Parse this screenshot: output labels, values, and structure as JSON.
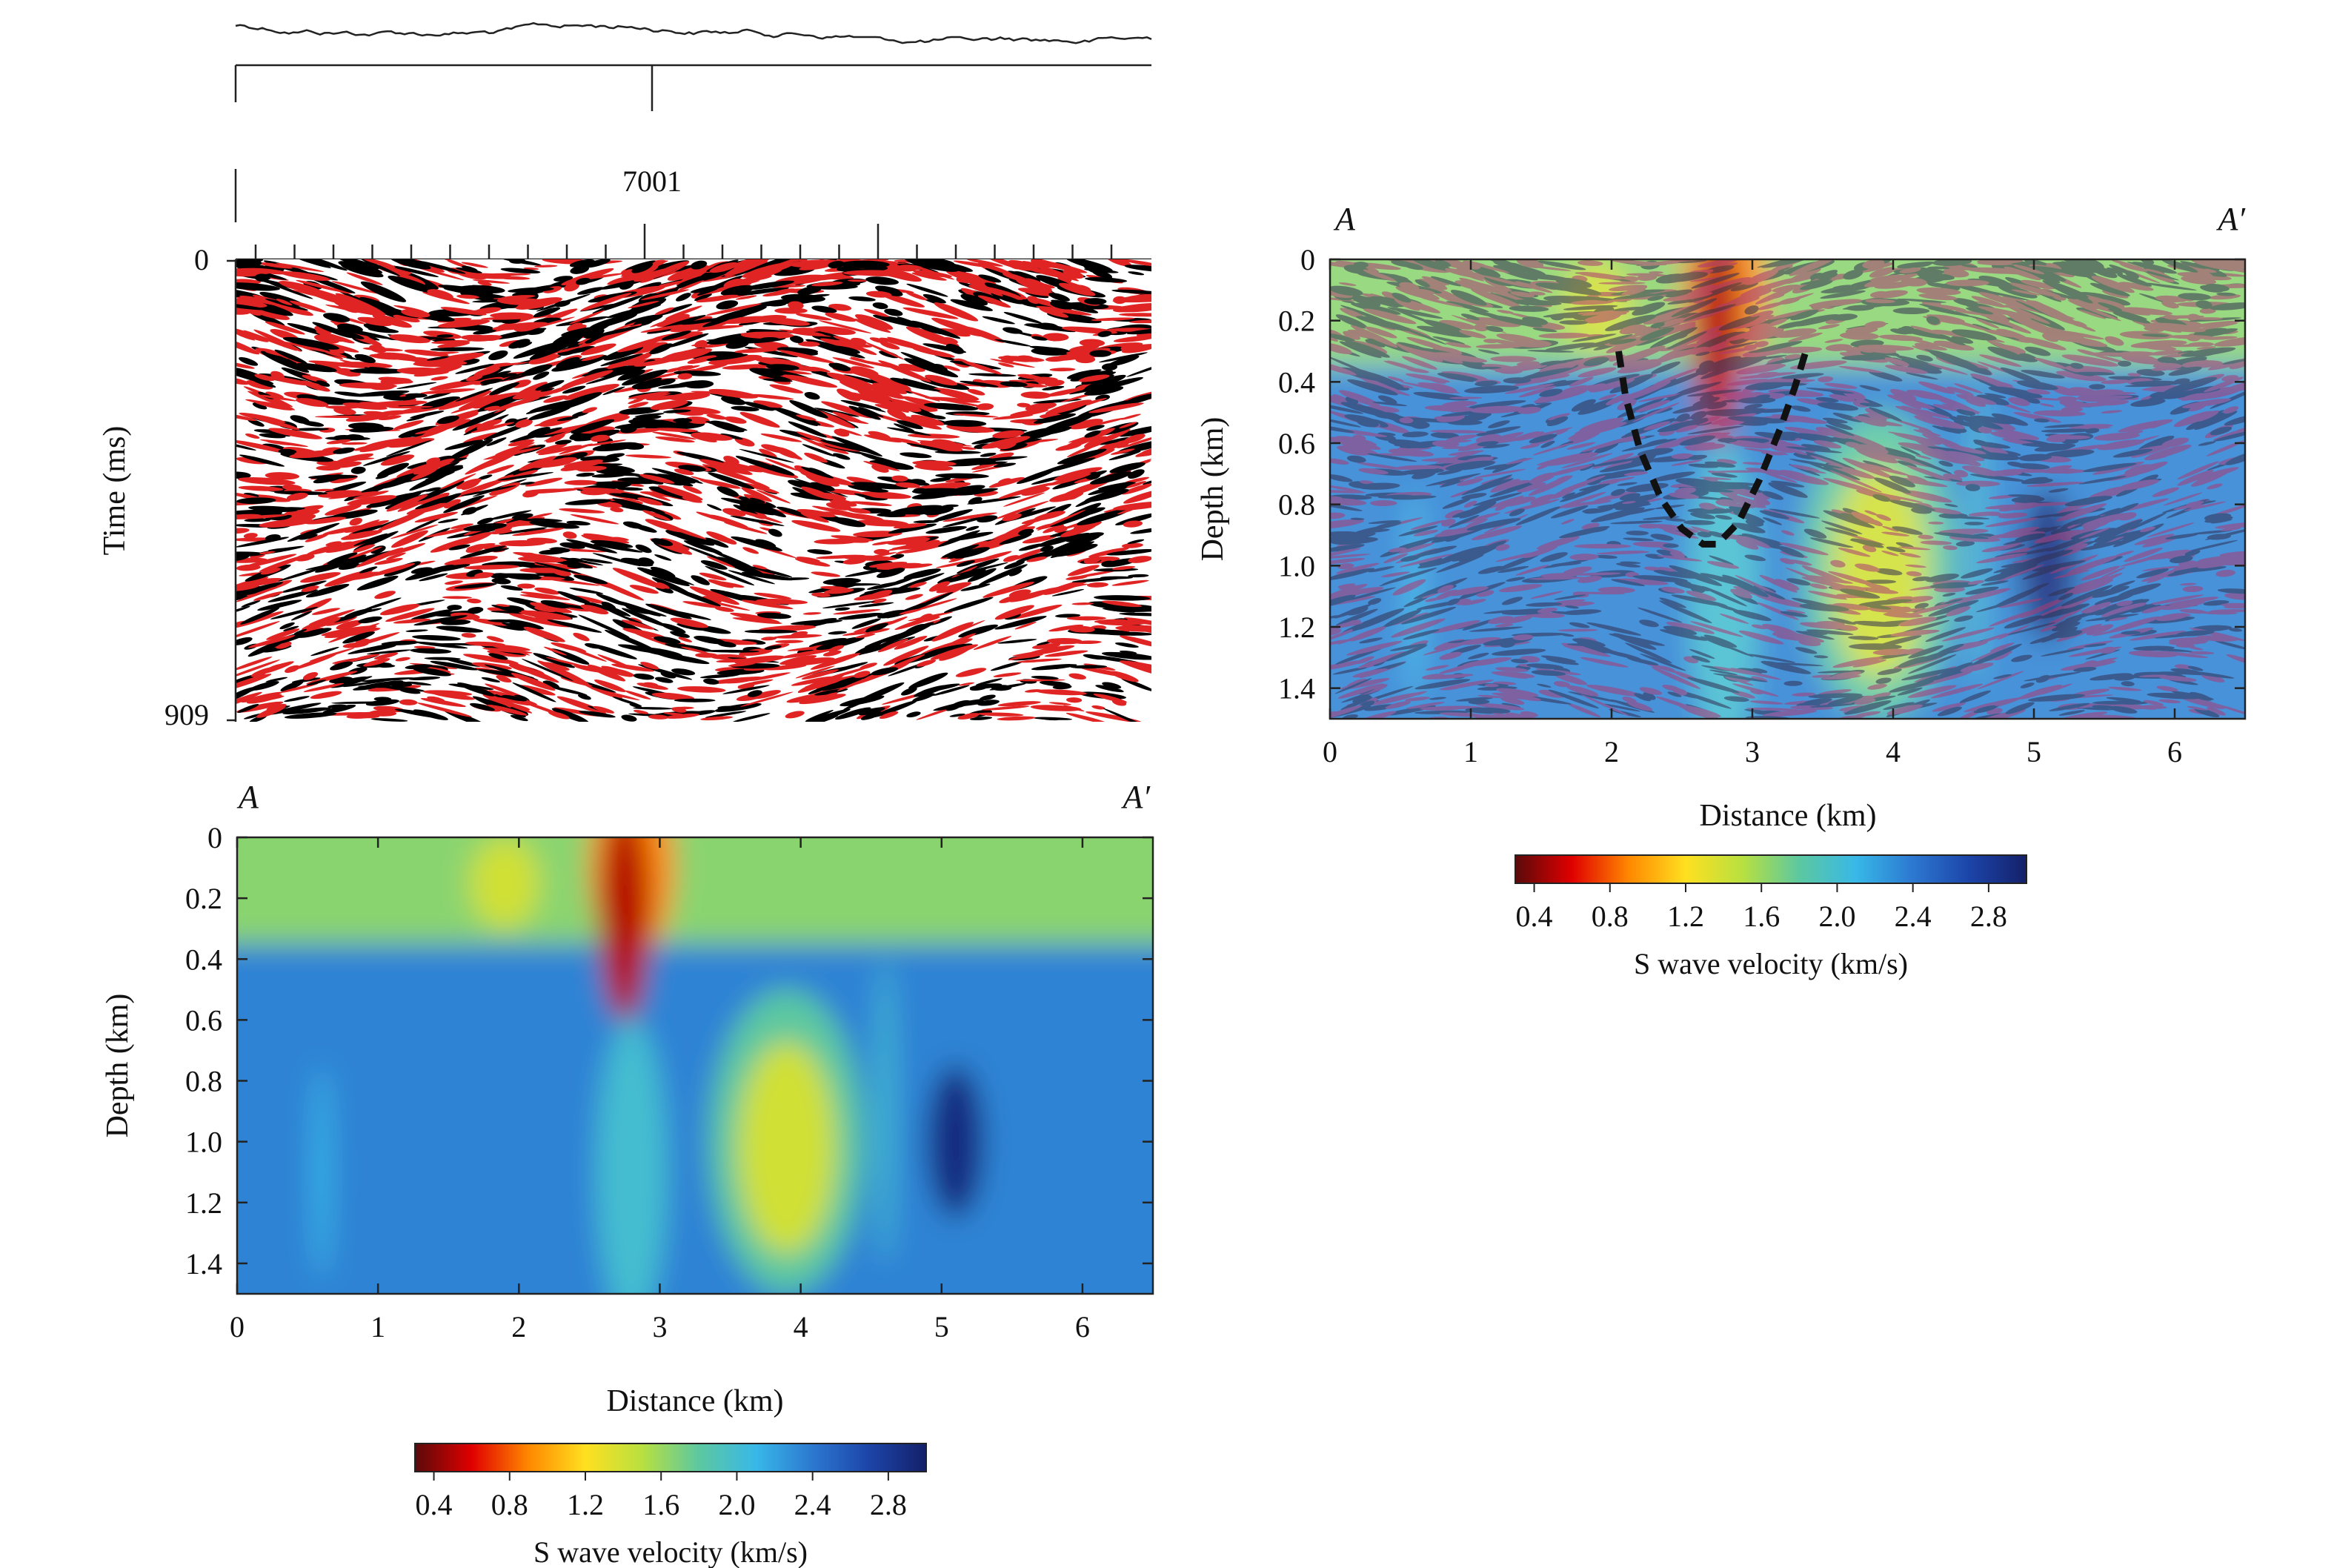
{
  "chart_data": [
    {
      "type": "seismic_section",
      "panel": "top-left",
      "trace_label": "7001",
      "ylabel": "Time (ms)",
      "y_ticks": [
        "0",
        "909"
      ],
      "ylim": [
        0,
        909
      ],
      "wiggle_colors": {
        "positive": "#000000",
        "negative": "#e02424"
      }
    },
    {
      "type": "heatmap",
      "panel": "bottom-left",
      "profile_start": "A",
      "profile_end": "A′",
      "xlabel": "Distance (km)",
      "ylabel": "Depth (km)",
      "xlim": [
        0,
        6.5
      ],
      "ylim": [
        0,
        1.5
      ],
      "x_ticks": [
        "0",
        "1",
        "2",
        "3",
        "4",
        "5",
        "6"
      ],
      "y_ticks": [
        "0",
        "0.2",
        "0.4",
        "0.6",
        "0.8",
        "1.0",
        "1.2",
        "1.4"
      ],
      "colorbar": {
        "title": "S wave velocity (km/s)",
        "ticks": [
          "0.4",
          "0.8",
          "1.2",
          "1.6",
          "2.0",
          "2.4",
          "2.8"
        ],
        "range": [
          0.3,
          3.0
        ],
        "colors": [
          "#5a0a0a",
          "#e00000",
          "#ff8800",
          "#ffe020",
          "#b8e040",
          "#5cc8a0",
          "#38b8e8",
          "#2c78d0",
          "#1c44a8",
          "#14206a"
        ]
      },
      "background_velocity": 2.35,
      "anomalies": [
        {
          "x": 2.75,
          "z": 0.25,
          "rx": 0.18,
          "rz": 0.35,
          "value": 0.5
        },
        {
          "x": 2.8,
          "z": 0.1,
          "rx": 0.3,
          "rz": 0.3,
          "value": 0.9
        },
        {
          "x": 1.9,
          "z": 0.15,
          "rx": 0.25,
          "rz": 0.15,
          "value": 1.4
        },
        {
          "x": 3.9,
          "z": 1.02,
          "rx": 0.35,
          "rz": 0.35,
          "value": 1.4
        },
        {
          "x": 3.9,
          "z": 1.0,
          "rx": 0.55,
          "rz": 0.5,
          "value": 1.8
        },
        {
          "x": 2.8,
          "z": 1.1,
          "rx": 0.25,
          "rz": 0.5,
          "value": 2.0
        },
        {
          "x": 4.6,
          "z": 0.9,
          "rx": 0.06,
          "rz": 0.5,
          "value": 2.0
        },
        {
          "x": 5.1,
          "z": 1.0,
          "rx": 0.2,
          "rz": 0.25,
          "value": 2.9
        },
        {
          "x": 0.6,
          "z": 1.1,
          "rx": 0.06,
          "rz": 0.35,
          "value": 2.1
        }
      ],
      "shallow_layer": {
        "depth": 0.35,
        "value": 1.65
      }
    },
    {
      "type": "heatmap",
      "panel": "right",
      "overlay": "seismic",
      "profile_start": "A",
      "profile_end": "A′",
      "xlabel": "Distance (km)",
      "ylabel": "Depth (km)",
      "xlim": [
        0,
        6.5
      ],
      "ylim": [
        0,
        1.5
      ],
      "x_ticks": [
        "0",
        "1",
        "2",
        "3",
        "4",
        "5",
        "6"
      ],
      "y_ticks": [
        "0",
        "0.2",
        "0.4",
        "0.6",
        "0.8",
        "1.0",
        "1.2",
        "1.4"
      ],
      "colorbar": {
        "title": "S wave velocity (km/s)",
        "ticks": [
          "0.4",
          "0.8",
          "1.2",
          "1.6",
          "2.0",
          "2.4",
          "2.8"
        ]
      },
      "dashed_curve": {
        "x": [
          2.05,
          2.1,
          2.2,
          2.35,
          2.5,
          2.65,
          2.75,
          2.9,
          3.05,
          3.2,
          3.3,
          3.38
        ],
        "z": [
          0.3,
          0.45,
          0.62,
          0.78,
          0.88,
          0.93,
          0.93,
          0.86,
          0.72,
          0.55,
          0.42,
          0.3
        ]
      }
    }
  ]
}
